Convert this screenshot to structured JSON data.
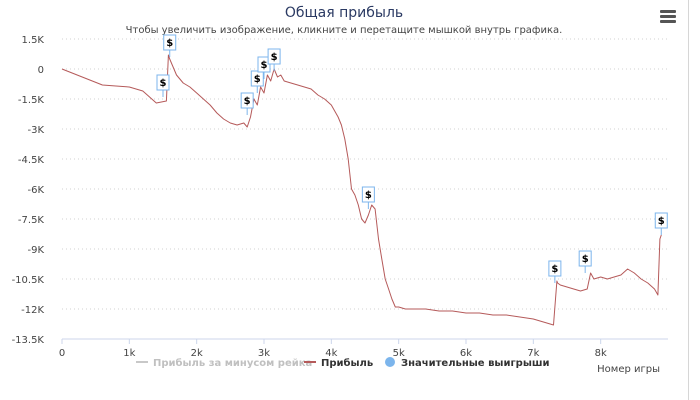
{
  "header": {
    "title": "Общая прибыль",
    "subtitle": "Чтобы увеличить изображение, кликните и перетащите мышкой внутрь графика.",
    "menu_icon": "hamburger-menu-icon"
  },
  "legend": {
    "items": [
      {
        "label": "Прибыль за минусом рейка",
        "color": "#c8c8c8",
        "marker": "line",
        "active": false
      },
      {
        "label": "Прибыль",
        "color": "#b55a5a",
        "marker": "line",
        "active": true
      },
      {
        "label": "Значительные выигрыши",
        "color": "#7cb5ec",
        "marker": "circle",
        "active": true
      }
    ]
  },
  "chart_data": {
    "type": "line",
    "title": "Общая прибыль",
    "xlabel": "Номер игры",
    "ylabel": "",
    "xlim": [
      0,
      9000
    ],
    "ylim": [
      -13500,
      1500
    ],
    "x_ticks": [
      "0",
      "1k",
      "2k",
      "3k",
      "4k",
      "5k",
      "6k",
      "7k",
      "8k"
    ],
    "y_ticks": [
      "1.5K",
      "0",
      "-1.5K",
      "-3K",
      "-4.5K",
      "-6K",
      "-7.5K",
      "-9K",
      "-10.5K",
      "-12K",
      "-13.5K"
    ],
    "grid": true,
    "series": [
      {
        "name": "Прибыль",
        "color": "#b55a5a",
        "x": [
          0,
          150,
          300,
          450,
          600,
          800,
          1000,
          1200,
          1400,
          1550,
          1580,
          1600,
          1700,
          1800,
          1900,
          2000,
          2100,
          2200,
          2300,
          2400,
          2500,
          2600,
          2700,
          2750,
          2800,
          2850,
          2900,
          2950,
          3000,
          3050,
          3100,
          3150,
          3200,
          3250,
          3300,
          3400,
          3500,
          3600,
          3700,
          3800,
          3900,
          4000,
          4100,
          4150,
          4200,
          4250,
          4300,
          4350,
          4400,
          4450,
          4500,
          4550,
          4600,
          4650,
          4700,
          4750,
          4800,
          4850,
          4900,
          4950,
          5000,
          5100,
          5200,
          5400,
          5600,
          5800,
          6000,
          6200,
          6400,
          6600,
          6800,
          7000,
          7200,
          7300,
          7350,
          7360,
          7400,
          7500,
          7600,
          7700,
          7800,
          7850,
          7900,
          8000,
          8100,
          8200,
          8300,
          8400,
          8500,
          8600,
          8700,
          8800,
          8850,
          8880,
          8900
        ],
        "values": [
          0,
          -200,
          -400,
          -600,
          -800,
          -850,
          -900,
          -1100,
          -1700,
          -1600,
          700,
          500,
          -300,
          -700,
          -900,
          -1200,
          -1500,
          -1800,
          -2200,
          -2500,
          -2700,
          -2800,
          -2700,
          -2900,
          -2400,
          -1500,
          -1800,
          -900,
          -1200,
          -300,
          -600,
          0,
          -400,
          -300,
          -600,
          -700,
          -800,
          -900,
          -1000,
          -1300,
          -1500,
          -1800,
          -2400,
          -2800,
          -3500,
          -4500,
          -6000,
          -6300,
          -6800,
          -7500,
          -7700,
          -7300,
          -6800,
          -7000,
          -8500,
          -9500,
          -10500,
          -11000,
          -11500,
          -11900,
          -11900,
          -12000,
          -12000,
          -12000,
          -12100,
          -12100,
          -12200,
          -12200,
          -12300,
          -12300,
          -12400,
          -12500,
          -12700,
          -12800,
          -10600,
          -10700,
          -10800,
          -10900,
          -11000,
          -11100,
          -11000,
          -10200,
          -10500,
          -10400,
          -10500,
          -10400,
          -10300,
          -10000,
          -10200,
          -10500,
          -10700,
          -11000,
          -11300,
          -8500,
          -8300
        ]
      }
    ],
    "markers": [
      {
        "x": 1500,
        "y": -1400,
        "label": "$"
      },
      {
        "x": 1600,
        "y": 600,
        "label": "$"
      },
      {
        "x": 2750,
        "y": -2300,
        "label": "$"
      },
      {
        "x": 2900,
        "y": -1200,
        "label": "$"
      },
      {
        "x": 3000,
        "y": -500,
        "label": "$"
      },
      {
        "x": 3150,
        "y": -100,
        "label": "$"
      },
      {
        "x": 4550,
        "y": -7000,
        "label": "$"
      },
      {
        "x": 7320,
        "y": -10700,
        "label": "$"
      },
      {
        "x": 7770,
        "y": -10200,
        "label": "$"
      },
      {
        "x": 8900,
        "y": -8300,
        "label": "$"
      }
    ]
  }
}
